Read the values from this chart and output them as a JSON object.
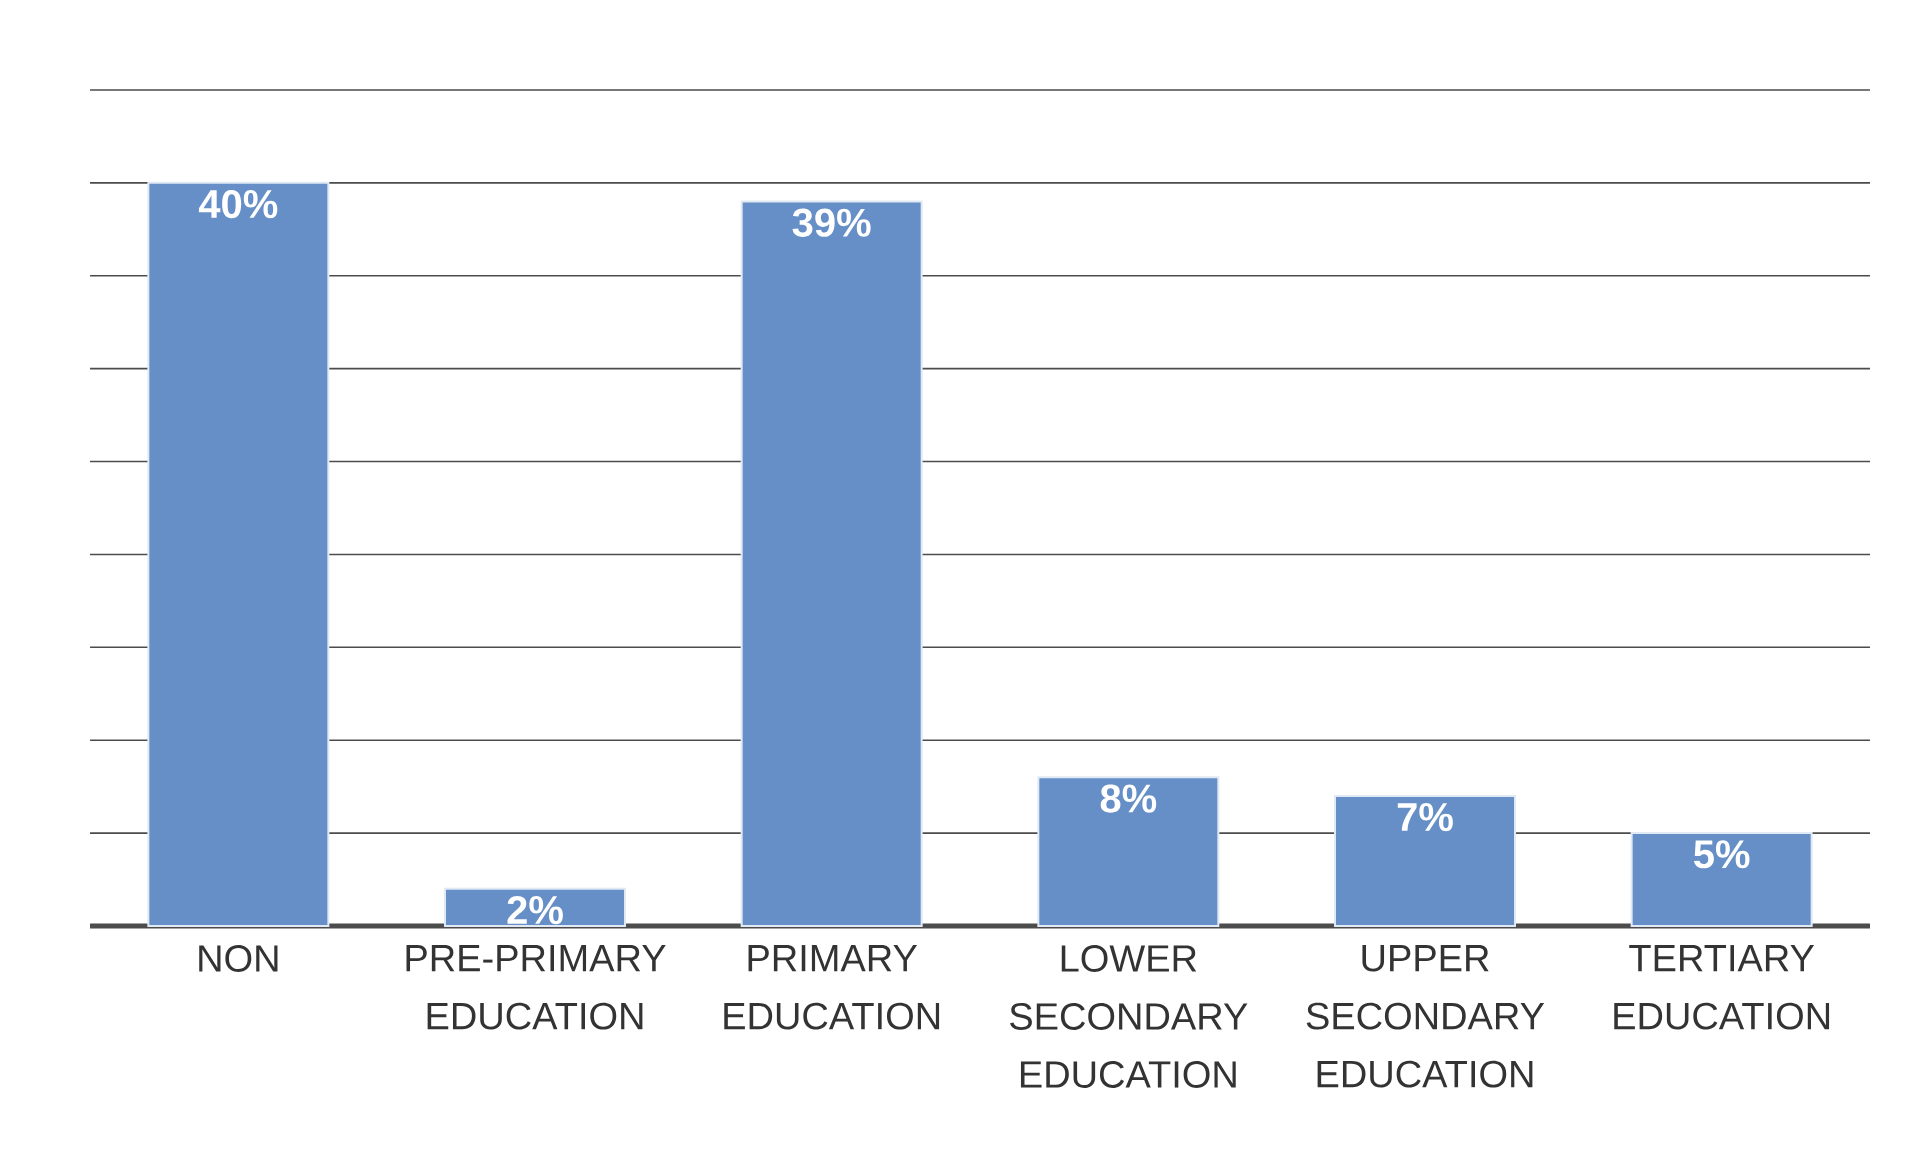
{
  "chart_data": {
    "type": "bar",
    "categories": [
      "NON",
      "PRE-PRIMARY EDUCATION",
      "PRIMARY EDUCATION",
      "LOWER SECONDARY EDUCATION",
      "UPPER SECONDARY EDUCATION",
      "TERTIARY EDUCATION"
    ],
    "values": [
      40,
      2,
      39,
      8,
      7,
      5
    ],
    "value_labels": [
      "40%",
      "2%",
      "39%",
      "8%",
      "7%",
      "5%"
    ],
    "color": "#658fc6",
    "ylim": [
      0,
      45
    ],
    "yticks": [
      {
        "value": 0,
        "label": null
      },
      {
        "value": 5,
        "label": null
      },
      {
        "value": 10,
        "label": null
      },
      {
        "value": 15,
        "label": null
      },
      {
        "value": 20,
        "label": null
      },
      {
        "value": 25,
        "label": null
      },
      {
        "value": 30,
        "label": null
      },
      {
        "value": 35,
        "label": null
      },
      {
        "value": 40,
        "label": null
      },
      {
        "value": 45,
        "label": null
      }
    ],
    "grid": "y",
    "tick_labels": "x"
  }
}
